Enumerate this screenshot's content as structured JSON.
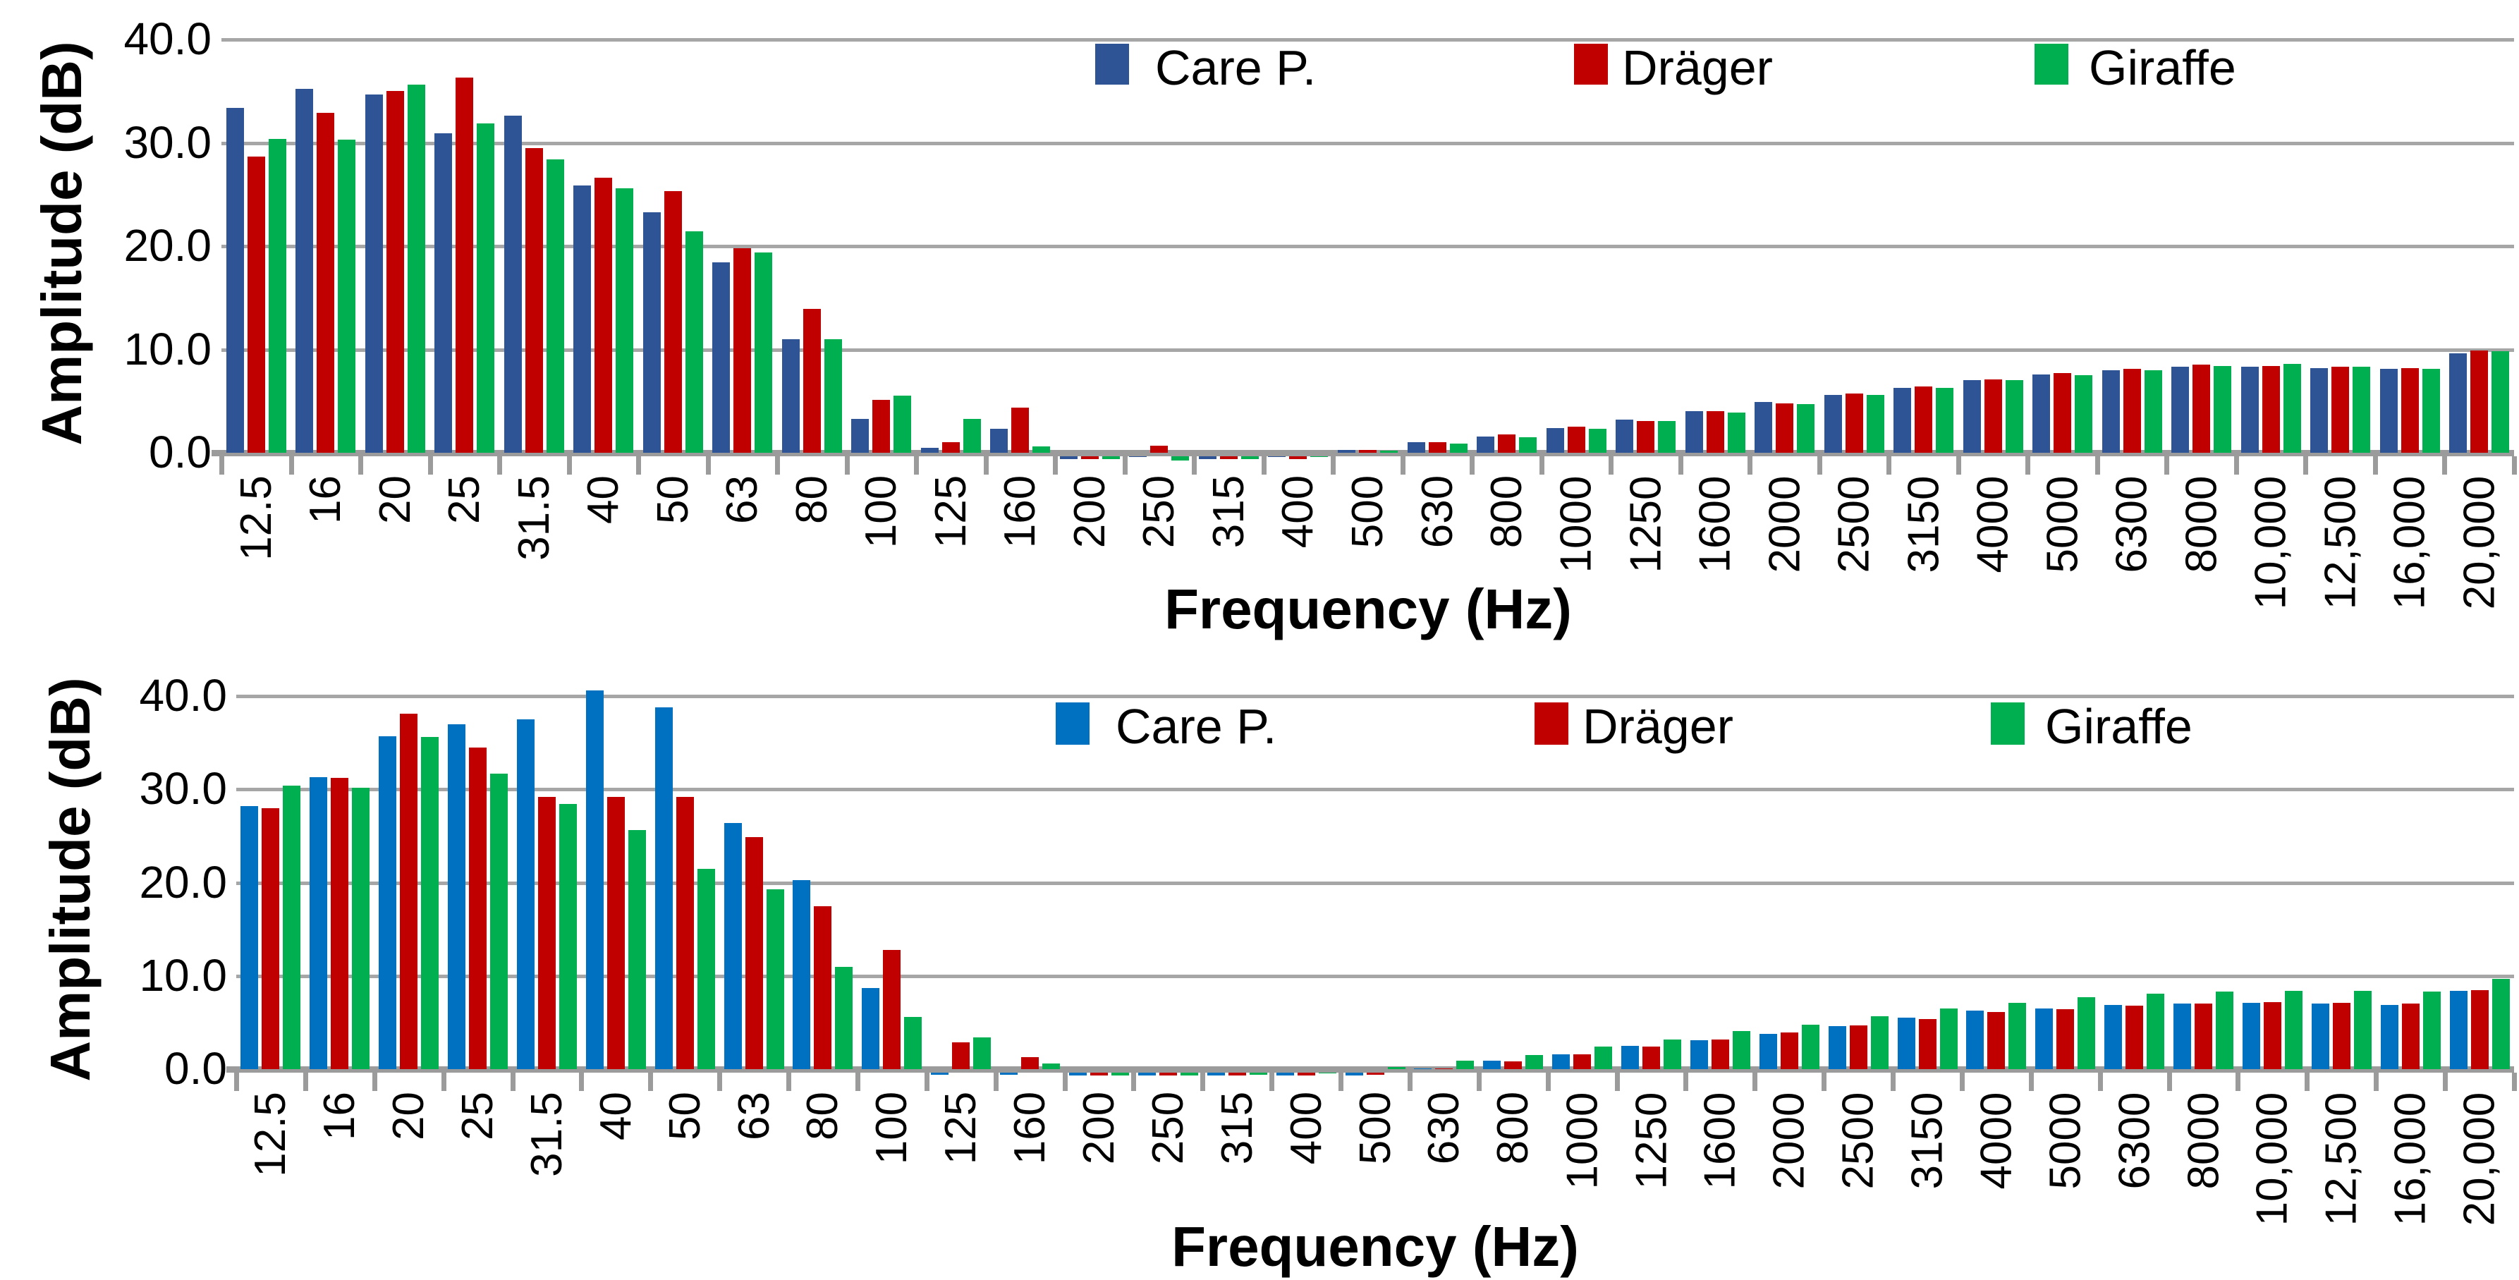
{
  "page": {
    "background": "#ffffff"
  },
  "colors": {
    "care_p_top": "#2F5496",
    "care_p_bottom": "#0070C0",
    "drager_red": "#C00000",
    "giraffe_green": "#00B050",
    "gridline_gray": "#A6A6A6",
    "axis_gray": "#9B9B9B",
    "text_black": "#000000"
  },
  "chart_data": [
    {
      "id": "top-chart",
      "type": "bar",
      "title": "",
      "xlabel": "Frequency (Hz)",
      "ylabel": "Amplitude (dB)",
      "ylim": [
        0,
        40
      ],
      "grid": true,
      "legend_position": "top-inside",
      "y_tick_labels": [
        "40.0",
        "30.0",
        "20.0",
        "10.0",
        "0.0"
      ],
      "categories": [
        "12.5",
        "16",
        "20",
        "25",
        "31.5",
        "40",
        "50",
        "63",
        "80",
        "100",
        "125",
        "160",
        "200",
        "250",
        "315",
        "400",
        "500",
        "630",
        "800",
        "1000",
        "1250",
        "1600",
        "2000",
        "2500",
        "3150",
        "4000",
        "5000",
        "6300",
        "8000",
        "10,000",
        "12,500",
        "16,000",
        "20,000"
      ],
      "series": [
        {
          "name": "Care P.",
          "color": "#2F5496",
          "values": [
            33.4,
            35.2,
            34.7,
            30.9,
            32.6,
            25.9,
            23.3,
            18.4,
            11.0,
            3.3,
            0.5,
            2.3,
            -0.3,
            -0.1,
            -0.3,
            -0.1,
            0.3,
            1.0,
            1.6,
            2.4,
            3.2,
            4.0,
            4.9,
            5.6,
            6.3,
            7.0,
            7.6,
            8.0,
            8.3,
            8.3,
            8.2,
            8.1,
            9.6
          ]
        },
        {
          "name": "Dräger",
          "color": "#C00000",
          "values": [
            28.7,
            32.9,
            35.0,
            36.3,
            29.5,
            26.6,
            25.3,
            19.8,
            13.9,
            5.1,
            1.0,
            4.4,
            -0.3,
            0.7,
            -0.3,
            -0.3,
            0.3,
            1.0,
            1.8,
            2.5,
            3.1,
            4.0,
            4.8,
            5.7,
            6.4,
            7.1,
            7.7,
            8.1,
            8.5,
            8.4,
            8.3,
            8.2,
            9.9
          ]
        },
        {
          "name": "Giraffe",
          "color": "#00B050",
          "values": [
            30.4,
            30.3,
            35.6,
            31.9,
            28.4,
            25.6,
            21.4,
            19.4,
            11.0,
            5.5,
            3.3,
            0.6,
            -0.3,
            -0.4,
            -0.3,
            -0.1,
            0.2,
            0.9,
            1.5,
            2.3,
            3.1,
            3.9,
            4.7,
            5.6,
            6.3,
            7.0,
            7.5,
            8.0,
            8.4,
            8.6,
            8.3,
            8.1,
            9.8
          ]
        }
      ]
    },
    {
      "id": "bottom-chart",
      "type": "bar",
      "title": "",
      "xlabel": "Frequency (Hz)",
      "ylabel": "Amplitude  (dB)",
      "ylim": [
        0,
        40
      ],
      "grid": true,
      "legend_position": "top-inside",
      "y_tick_labels": [
        "40.0",
        "30.0",
        "20.0",
        "10.0",
        "0.0"
      ],
      "categories": [
        "12.5",
        "16",
        "20",
        "25",
        "31.5",
        "40",
        "50",
        "63",
        "80",
        "100",
        "125",
        "160",
        "200",
        "250",
        "315",
        "400",
        "500",
        "630",
        "800",
        "1000",
        "1250",
        "1600",
        "2000",
        "2500",
        "3150",
        "4000",
        "5000",
        "6300",
        "8000",
        "10,000",
        "12,500",
        "16,000",
        "20,000"
      ],
      "series": [
        {
          "name": "Care P.",
          "color": "#0070C0",
          "values": [
            28.2,
            31.3,
            35.7,
            37.0,
            37.5,
            40.6,
            38.8,
            26.4,
            20.3,
            8.7,
            -0.2,
            -0.2,
            -0.3,
            -0.3,
            -0.3,
            -0.3,
            -0.3,
            0.0,
            0.9,
            1.6,
            2.5,
            3.1,
            3.8,
            4.6,
            5.5,
            6.3,
            6.5,
            6.9,
            7.0,
            7.1,
            7.0,
            6.9,
            8.4
          ]
        },
        {
          "name": "Dräger",
          "color": "#C00000",
          "values": [
            28.0,
            31.2,
            38.1,
            34.5,
            29.2,
            29.2,
            29.2,
            24.9,
            17.5,
            12.8,
            2.9,
            1.3,
            -0.3,
            -0.3,
            -0.3,
            -0.3,
            -0.2,
            0.1,
            0.8,
            1.6,
            2.4,
            3.2,
            3.9,
            4.7,
            5.4,
            6.1,
            6.4,
            6.8,
            7.0,
            7.2,
            7.1,
            7.0,
            8.5
          ]
        },
        {
          "name": "Giraffe",
          "color": "#00B050",
          "values": [
            30.4,
            30.2,
            35.6,
            31.7,
            28.4,
            25.6,
            21.5,
            19.3,
            11.0,
            5.6,
            3.4,
            0.6,
            -0.3,
            -0.3,
            -0.2,
            -0.1,
            0.2,
            0.9,
            1.5,
            2.4,
            3.2,
            4.1,
            4.8,
            5.7,
            6.5,
            7.1,
            7.7,
            8.1,
            8.3,
            8.4,
            8.4,
            8.3,
            9.7
          ]
        }
      ]
    }
  ]
}
